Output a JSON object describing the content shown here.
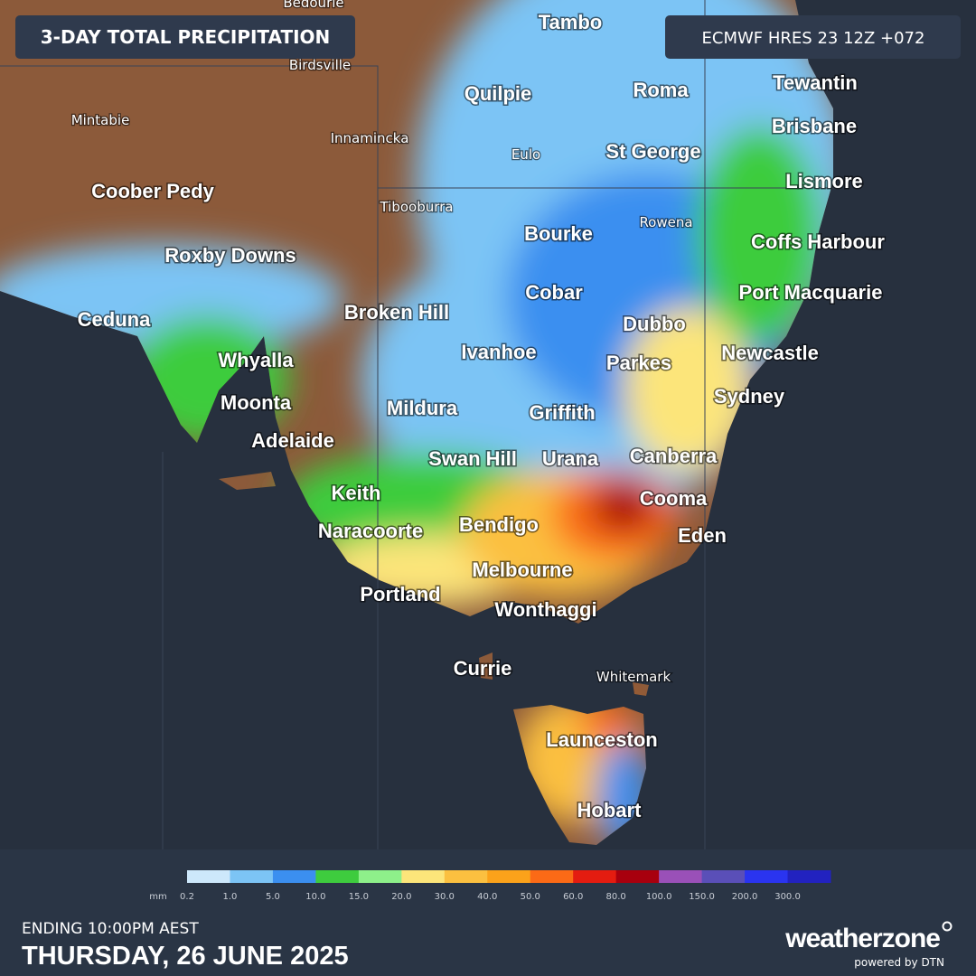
{
  "header": {
    "title": "3-DAY TOTAL PRECIPITATION",
    "model": "ECMWF HRES 23 12Z +072"
  },
  "cities": [
    {
      "name": "Bedourie",
      "size": "small"
    },
    {
      "name": "Tambo",
      "size": "large"
    },
    {
      "name": "Birdsville",
      "size": "small"
    },
    {
      "name": "Quilpie",
      "size": "large"
    },
    {
      "name": "Roma",
      "size": "large"
    },
    {
      "name": "Tewantin",
      "size": "large"
    },
    {
      "name": "Mintabie",
      "size": "small"
    },
    {
      "name": "Innamincka",
      "size": "small"
    },
    {
      "name": "Eulo",
      "size": "small"
    },
    {
      "name": "St George",
      "size": "large"
    },
    {
      "name": "Brisbane",
      "size": "large"
    },
    {
      "name": "Lismore",
      "size": "large"
    },
    {
      "name": "Coober Pedy",
      "size": "large"
    },
    {
      "name": "Tibooburra",
      "size": "small"
    },
    {
      "name": "Bourke",
      "size": "large"
    },
    {
      "name": "Rowena",
      "size": "small"
    },
    {
      "name": "Coffs Harbour",
      "size": "large"
    },
    {
      "name": "Roxby Downs",
      "size": "large"
    },
    {
      "name": "Cobar",
      "size": "large"
    },
    {
      "name": "Port Macquarie",
      "size": "large"
    },
    {
      "name": "Ceduna",
      "size": "large"
    },
    {
      "name": "Broken Hill",
      "size": "large"
    },
    {
      "name": "Dubbo",
      "size": "large"
    },
    {
      "name": "Ivanhoe",
      "size": "large"
    },
    {
      "name": "Newcastle",
      "size": "large"
    },
    {
      "name": "Whyalla",
      "size": "large"
    },
    {
      "name": "Parkes",
      "size": "large"
    },
    {
      "name": "Sydney",
      "size": "large"
    },
    {
      "name": "Moonta",
      "size": "large"
    },
    {
      "name": "Mildura",
      "size": "large"
    },
    {
      "name": "Griffith",
      "size": "large"
    },
    {
      "name": "Adelaide",
      "size": "large"
    },
    {
      "name": "Swan Hill",
      "size": "large"
    },
    {
      "name": "Urana",
      "size": "large"
    },
    {
      "name": "Canberra",
      "size": "large"
    },
    {
      "name": "Keith",
      "size": "large"
    },
    {
      "name": "Cooma",
      "size": "large"
    },
    {
      "name": "Naracoorte",
      "size": "large"
    },
    {
      "name": "Bendigo",
      "size": "large"
    },
    {
      "name": "Eden",
      "size": "large"
    },
    {
      "name": "Melbourne",
      "size": "large"
    },
    {
      "name": "Portland",
      "size": "large"
    },
    {
      "name": "Wonthaggi",
      "size": "large"
    },
    {
      "name": "Currie",
      "size": "large"
    },
    {
      "name": "Whitemark",
      "size": "small"
    },
    {
      "name": "Launceston",
      "size": "large"
    },
    {
      "name": "Hobart",
      "size": "large"
    }
  ],
  "legend": {
    "unit": "mm",
    "items": [
      {
        "label": "0.2",
        "color": "#cde8fb"
      },
      {
        "label": "1.0",
        "color": "#7cc4f5"
      },
      {
        "label": "5.0",
        "color": "#3b8ff0"
      },
      {
        "label": "10.0",
        "color": "#3ecc3e"
      },
      {
        "label": "15.0",
        "color": "#8ef08a"
      },
      {
        "label": "20.0",
        "color": "#fce57a"
      },
      {
        "label": "30.0",
        "color": "#fbc040"
      },
      {
        "label": "40.0",
        "color": "#fba21a"
      },
      {
        "label": "50.0",
        "color": "#fb6a16"
      },
      {
        "label": "60.0",
        "color": "#e41c10"
      },
      {
        "label": "80.0",
        "color": "#a8000e"
      },
      {
        "label": "100.0",
        "color": "#9a50b8"
      },
      {
        "label": "150.0",
        "color": "#5a4fb8"
      },
      {
        "label": "200.0",
        "color": "#2a34f0"
      },
      {
        "label": "300.0",
        "color": "#2222c0"
      }
    ]
  },
  "footer": {
    "ending": "ENDING 10:00PM AEST",
    "date": "THURSDAY, 26 JUNE 2025"
  },
  "brand": {
    "name": "weatherzone",
    "powered": "powered by DTN"
  }
}
